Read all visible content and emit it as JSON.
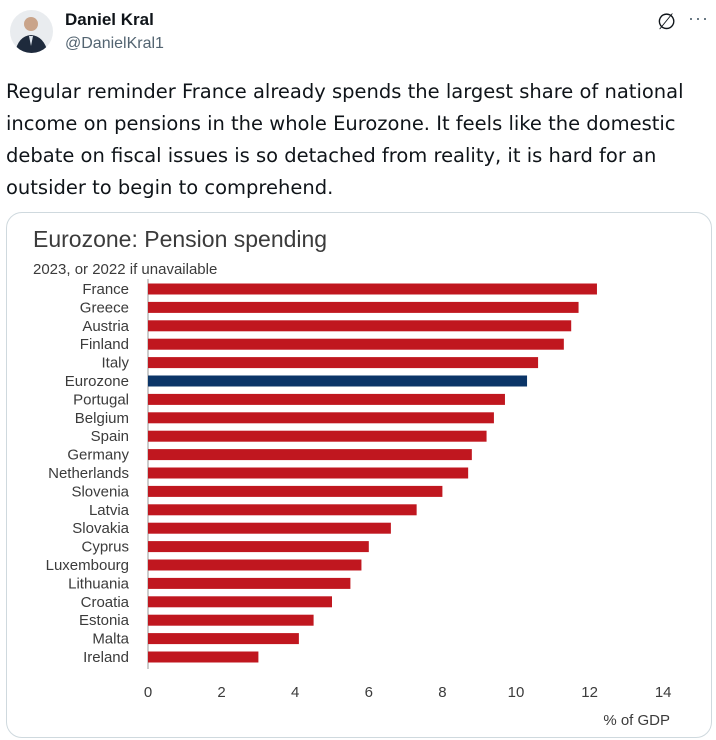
{
  "tweet": {
    "author_name": "Daniel Kral",
    "handle": "@DanielKral1",
    "text": "Regular reminder France already spends the largest share of national income on pensions in the whole Eurozone. It feels like the domestic debate on fiscal issues is so detached from reality, it is hard for an outsider to begin to comprehend.",
    "icons": [
      "grok-icon",
      "more-icon"
    ]
  },
  "colors": {
    "bar": "#c0171f",
    "highlight": "#0b3567",
    "title": "#3b3b3b"
  },
  "chart_data": {
    "type": "bar",
    "orientation": "horizontal",
    "title": "Eurozone: Pension spending",
    "subtitle": "2023, or 2022 if unavailable",
    "xlabel": "% of GDP",
    "ylabel": "",
    "xlim": [
      0,
      14
    ],
    "xticks": [
      "0",
      "2",
      "4",
      "6",
      "8",
      "10",
      "12",
      "14"
    ],
    "highlight": "Eurozone",
    "categories": [
      "France",
      "Greece",
      "Austria",
      "Finland",
      "Italy",
      "Eurozone",
      "Portugal",
      "Belgium",
      "Spain",
      "Germany",
      "Netherlands",
      "Slovenia",
      "Latvia",
      "Slovakia",
      "Cyprus",
      "Luxembourg",
      "Lithuania",
      "Croatia",
      "Estonia",
      "Malta",
      "Ireland"
    ],
    "values": [
      12.2,
      11.7,
      11.5,
      11.3,
      10.6,
      10.3,
      9.7,
      9.4,
      9.2,
      8.8,
      8.7,
      8.0,
      7.3,
      6.6,
      6.0,
      5.8,
      5.5,
      5.0,
      4.5,
      4.1,
      3.0
    ]
  }
}
